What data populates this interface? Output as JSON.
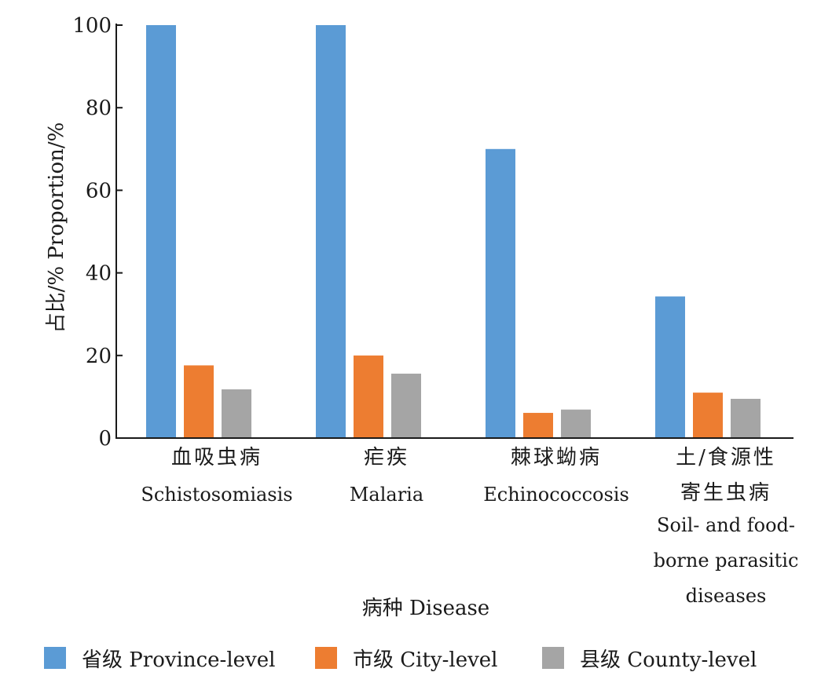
{
  "chart_data": {
    "type": "bar",
    "categories": [
      {
        "cn": [
          "血吸虫病"
        ],
        "en": [
          "Schistosomiasis"
        ]
      },
      {
        "cn": [
          "疟疾"
        ],
        "en": [
          "Malaria"
        ]
      },
      {
        "cn": [
          "棘球蚴病"
        ],
        "en": [
          "Echinococcosis"
        ]
      },
      {
        "cn": [
          "土/食源性",
          "寄生虫病"
        ],
        "en": [
          "Soil-  and food-",
          "borne  parasitic",
          "diseases"
        ]
      }
    ],
    "series": [
      {
        "name": "省级  Province-level",
        "color": "#5b9bd5",
        "values": [
          100,
          100,
          70,
          34.3
        ]
      },
      {
        "name": "市级  City-level",
        "color": "#ed7d31",
        "values": [
          17.6,
          20,
          6.1,
          11
        ]
      },
      {
        "name": "县级  County-level",
        "color": "#a5a5a5",
        "values": [
          11.8,
          15.6,
          6.9,
          9.5
        ]
      }
    ],
    "ylim": [
      0,
      100
    ],
    "yticks": [
      0,
      20,
      40,
      60,
      80,
      100
    ],
    "ylabel": "占比/%   Proportion/%",
    "xlabel": "病种  Disease",
    "legend_position": "bottom"
  }
}
